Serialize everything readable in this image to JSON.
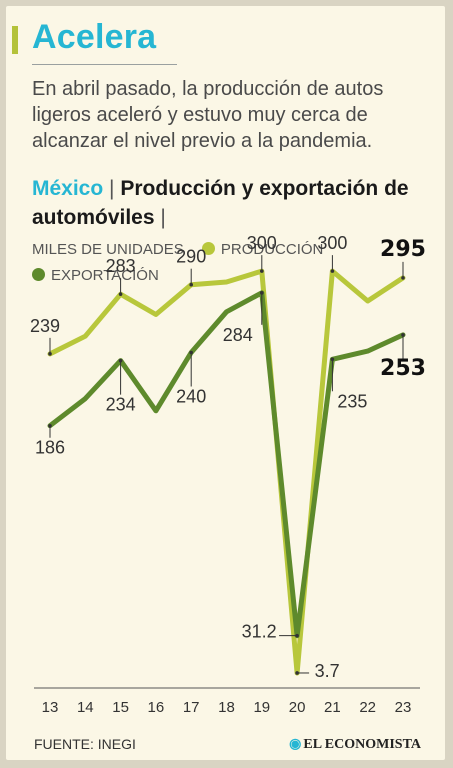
{
  "header": {
    "title": "Acelera",
    "subtitle": "En abril pasado, la producción de autos ligeros aceleró y estuvo muy cerca de alcanzar el nivel previo a la pandemia.",
    "country": "México",
    "separator": "|",
    "chart_title": "Producción y exportación de automóviles",
    "units": "MILES DE UNIDADES"
  },
  "colors": {
    "accent": "#26b6d3",
    "production": "#b8c73b",
    "export": "#5e8a2c",
    "background": "#fbf7e6"
  },
  "chart_data": {
    "type": "line",
    "x": [
      "13",
      "14",
      "15",
      "16",
      "17",
      "18",
      "19",
      "20",
      "21",
      "22",
      "23"
    ],
    "ylim": [
      0,
      320
    ],
    "grid": false,
    "legend": "top-left",
    "series": [
      {
        "name": "PRODUCCIÓN",
        "values": [
          239,
          252,
          283,
          268,
          290,
          292,
          300,
          3.7,
          300,
          278,
          295
        ]
      },
      {
        "name": "EXPORTACIÓN",
        "values": [
          186,
          206,
          234,
          197,
          240,
          270,
          284,
          31.2,
          235,
          241,
          253
        ]
      }
    ],
    "annotations": [
      {
        "series": 0,
        "index": 0,
        "label": "239",
        "bold": false
      },
      {
        "series": 0,
        "index": 2,
        "label": "283",
        "bold": false
      },
      {
        "series": 0,
        "index": 4,
        "label": "290",
        "bold": false
      },
      {
        "series": 0,
        "index": 6,
        "label": "300",
        "bold": false
      },
      {
        "series": 0,
        "index": 7,
        "label": "3.7",
        "bold": false
      },
      {
        "series": 0,
        "index": 8,
        "label": "300",
        "bold": false
      },
      {
        "series": 0,
        "index": 10,
        "label": "295",
        "bold": true
      },
      {
        "series": 1,
        "index": 0,
        "label": "186",
        "bold": false
      },
      {
        "series": 1,
        "index": 2,
        "label": "234",
        "bold": false
      },
      {
        "series": 1,
        "index": 4,
        "label": "240",
        "bold": false
      },
      {
        "series": 1,
        "index": 6,
        "label": "284",
        "bold": false
      },
      {
        "series": 1,
        "index": 7,
        "label": "31.2",
        "bold": false
      },
      {
        "series": 1,
        "index": 8,
        "label": "235",
        "bold": false
      },
      {
        "series": 1,
        "index": 10,
        "label": "253",
        "bold": true
      }
    ]
  },
  "footer": {
    "source": "FUENTE: INEGI",
    "brand": "EL ECONOMISTA",
    "brand_icon": "globe-icon"
  }
}
